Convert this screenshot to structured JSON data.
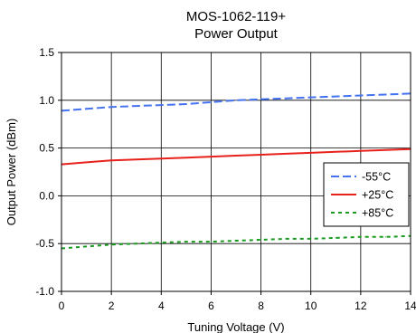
{
  "chart_data": {
    "type": "line",
    "title": "MOS-1062-119+",
    "subtitle": "Power Output",
    "xlabel": "Tuning Voltage (V)",
    "ylabel": "Output Power (dBm)",
    "xlim": [
      0,
      14
    ],
    "ylim": [
      -1.0,
      1.5
    ],
    "xticks": [
      "0",
      "2",
      "4",
      "6",
      "8",
      "10",
      "12",
      "14"
    ],
    "yticks": [
      "-1.0",
      "-0.5",
      "0.0",
      "0.5",
      "1.0",
      "1.5"
    ],
    "grid": true,
    "legend_position": "right",
    "x": [
      0,
      1,
      2,
      3,
      4,
      5,
      6,
      7,
      8,
      9,
      10,
      11,
      12,
      13,
      14
    ],
    "series": [
      {
        "name": "-55°C",
        "color": "#4472f0",
        "style": "dashed",
        "values": [
          0.89,
          0.91,
          0.93,
          0.94,
          0.95,
          0.96,
          0.98,
          1.0,
          1.01,
          1.02,
          1.03,
          1.04,
          1.05,
          1.06,
          1.07
        ]
      },
      {
        "name": "+25°C",
        "color": "#e8211b",
        "style": "solid",
        "values": [
          0.33,
          0.35,
          0.37,
          0.38,
          0.39,
          0.4,
          0.41,
          0.42,
          0.43,
          0.44,
          0.45,
          0.46,
          0.47,
          0.48,
          0.49
        ]
      },
      {
        "name": "+85°C",
        "color": "#179a1f",
        "style": "dotted",
        "values": [
          -0.55,
          -0.53,
          -0.51,
          -0.5,
          -0.49,
          -0.48,
          -0.48,
          -0.47,
          -0.46,
          -0.45,
          -0.45,
          -0.44,
          -0.43,
          -0.43,
          -0.42
        ]
      }
    ]
  }
}
